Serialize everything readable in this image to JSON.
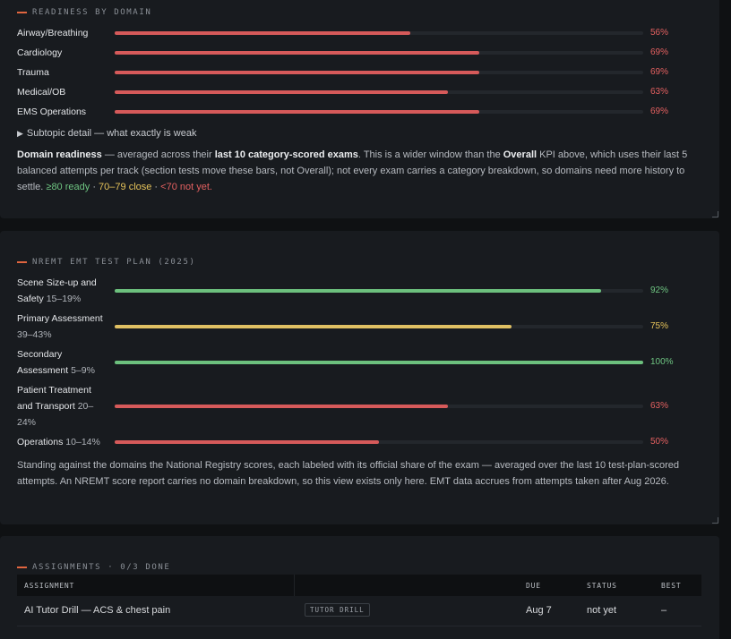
{
  "readiness": {
    "title": "READINESS BY DOMAIN",
    "rows": [
      {
        "label": "Airway/Breathing",
        "value": 56,
        "pct": "56%"
      },
      {
        "label": "Cardiology",
        "value": 69,
        "pct": "69%"
      },
      {
        "label": "Trauma",
        "value": 69,
        "pct": "69%"
      },
      {
        "label": "Medical/OB",
        "value": 63,
        "pct": "63%"
      },
      {
        "label": "EMS Operations",
        "value": 69,
        "pct": "69%"
      }
    ],
    "details_label": "Subtopic detail — what exactly is weak",
    "para": {
      "b1": "Domain readiness",
      "t1": " — averaged across their ",
      "b2": "last 10 category-scored exams",
      "t2": ". This is a wider window than the ",
      "b3": "Overall",
      "t3": " KPI above, which uses their last 5 balanced attempts per track (section tests move these bars, not Overall); not every exam carries a category breakdown, so domains need more history to settle. ",
      "ready": "≥80 ready",
      "sep1": " · ",
      "close": "70–79 close",
      "sep2": " · ",
      "notyet": "<70 not yet."
    }
  },
  "testplan": {
    "title": "NREMT EMT TEST PLAN (2025)",
    "rows": [
      {
        "name_a": "Scene Size-up and",
        "name_b": "Safety",
        "share": "15–19%",
        "value": 92,
        "pct": "92%"
      },
      {
        "name_a": "Primary Assessment",
        "name_b": "",
        "share": "39–43%",
        "value": 75,
        "pct": "75%"
      },
      {
        "name_a": "Secondary",
        "name_b": "Assessment",
        "share": "5–9%",
        "value": 100,
        "pct": "100%"
      },
      {
        "name_a": "Patient Treatment",
        "name_b": "and Transport",
        "share": "20–24%",
        "value": 63,
        "pct": "63%"
      },
      {
        "name_a": "Operations",
        "name_b": "",
        "share": "10–14%",
        "value": 50,
        "pct": "50%"
      }
    ],
    "para": "Standing against the domains the National Registry scores, each labeled with its official share of the exam — averaged over the last 10 test-plan-scored attempts. An NREMT score report carries no domain breakdown, so this view exists only here. EMT data accrues from attempts taken after Aug 2026."
  },
  "assignments": {
    "title": "ASSIGNMENTS · 0/3 DONE",
    "columns": {
      "assignment": "ASSIGNMENT",
      "due": "DUE",
      "status": "STATUS",
      "best": "BEST"
    },
    "rows": [
      {
        "name": "AI Tutor Drill — ACS & chest pain",
        "tag": "TUTOR DRILL",
        "due": "Aug 7",
        "status": "not yet",
        "best": "–"
      }
    ]
  },
  "colors": {
    "red": "#d65a5a",
    "yellow": "#dfc063",
    "green": "#6cc07d",
    "accent": "#e0653f"
  }
}
